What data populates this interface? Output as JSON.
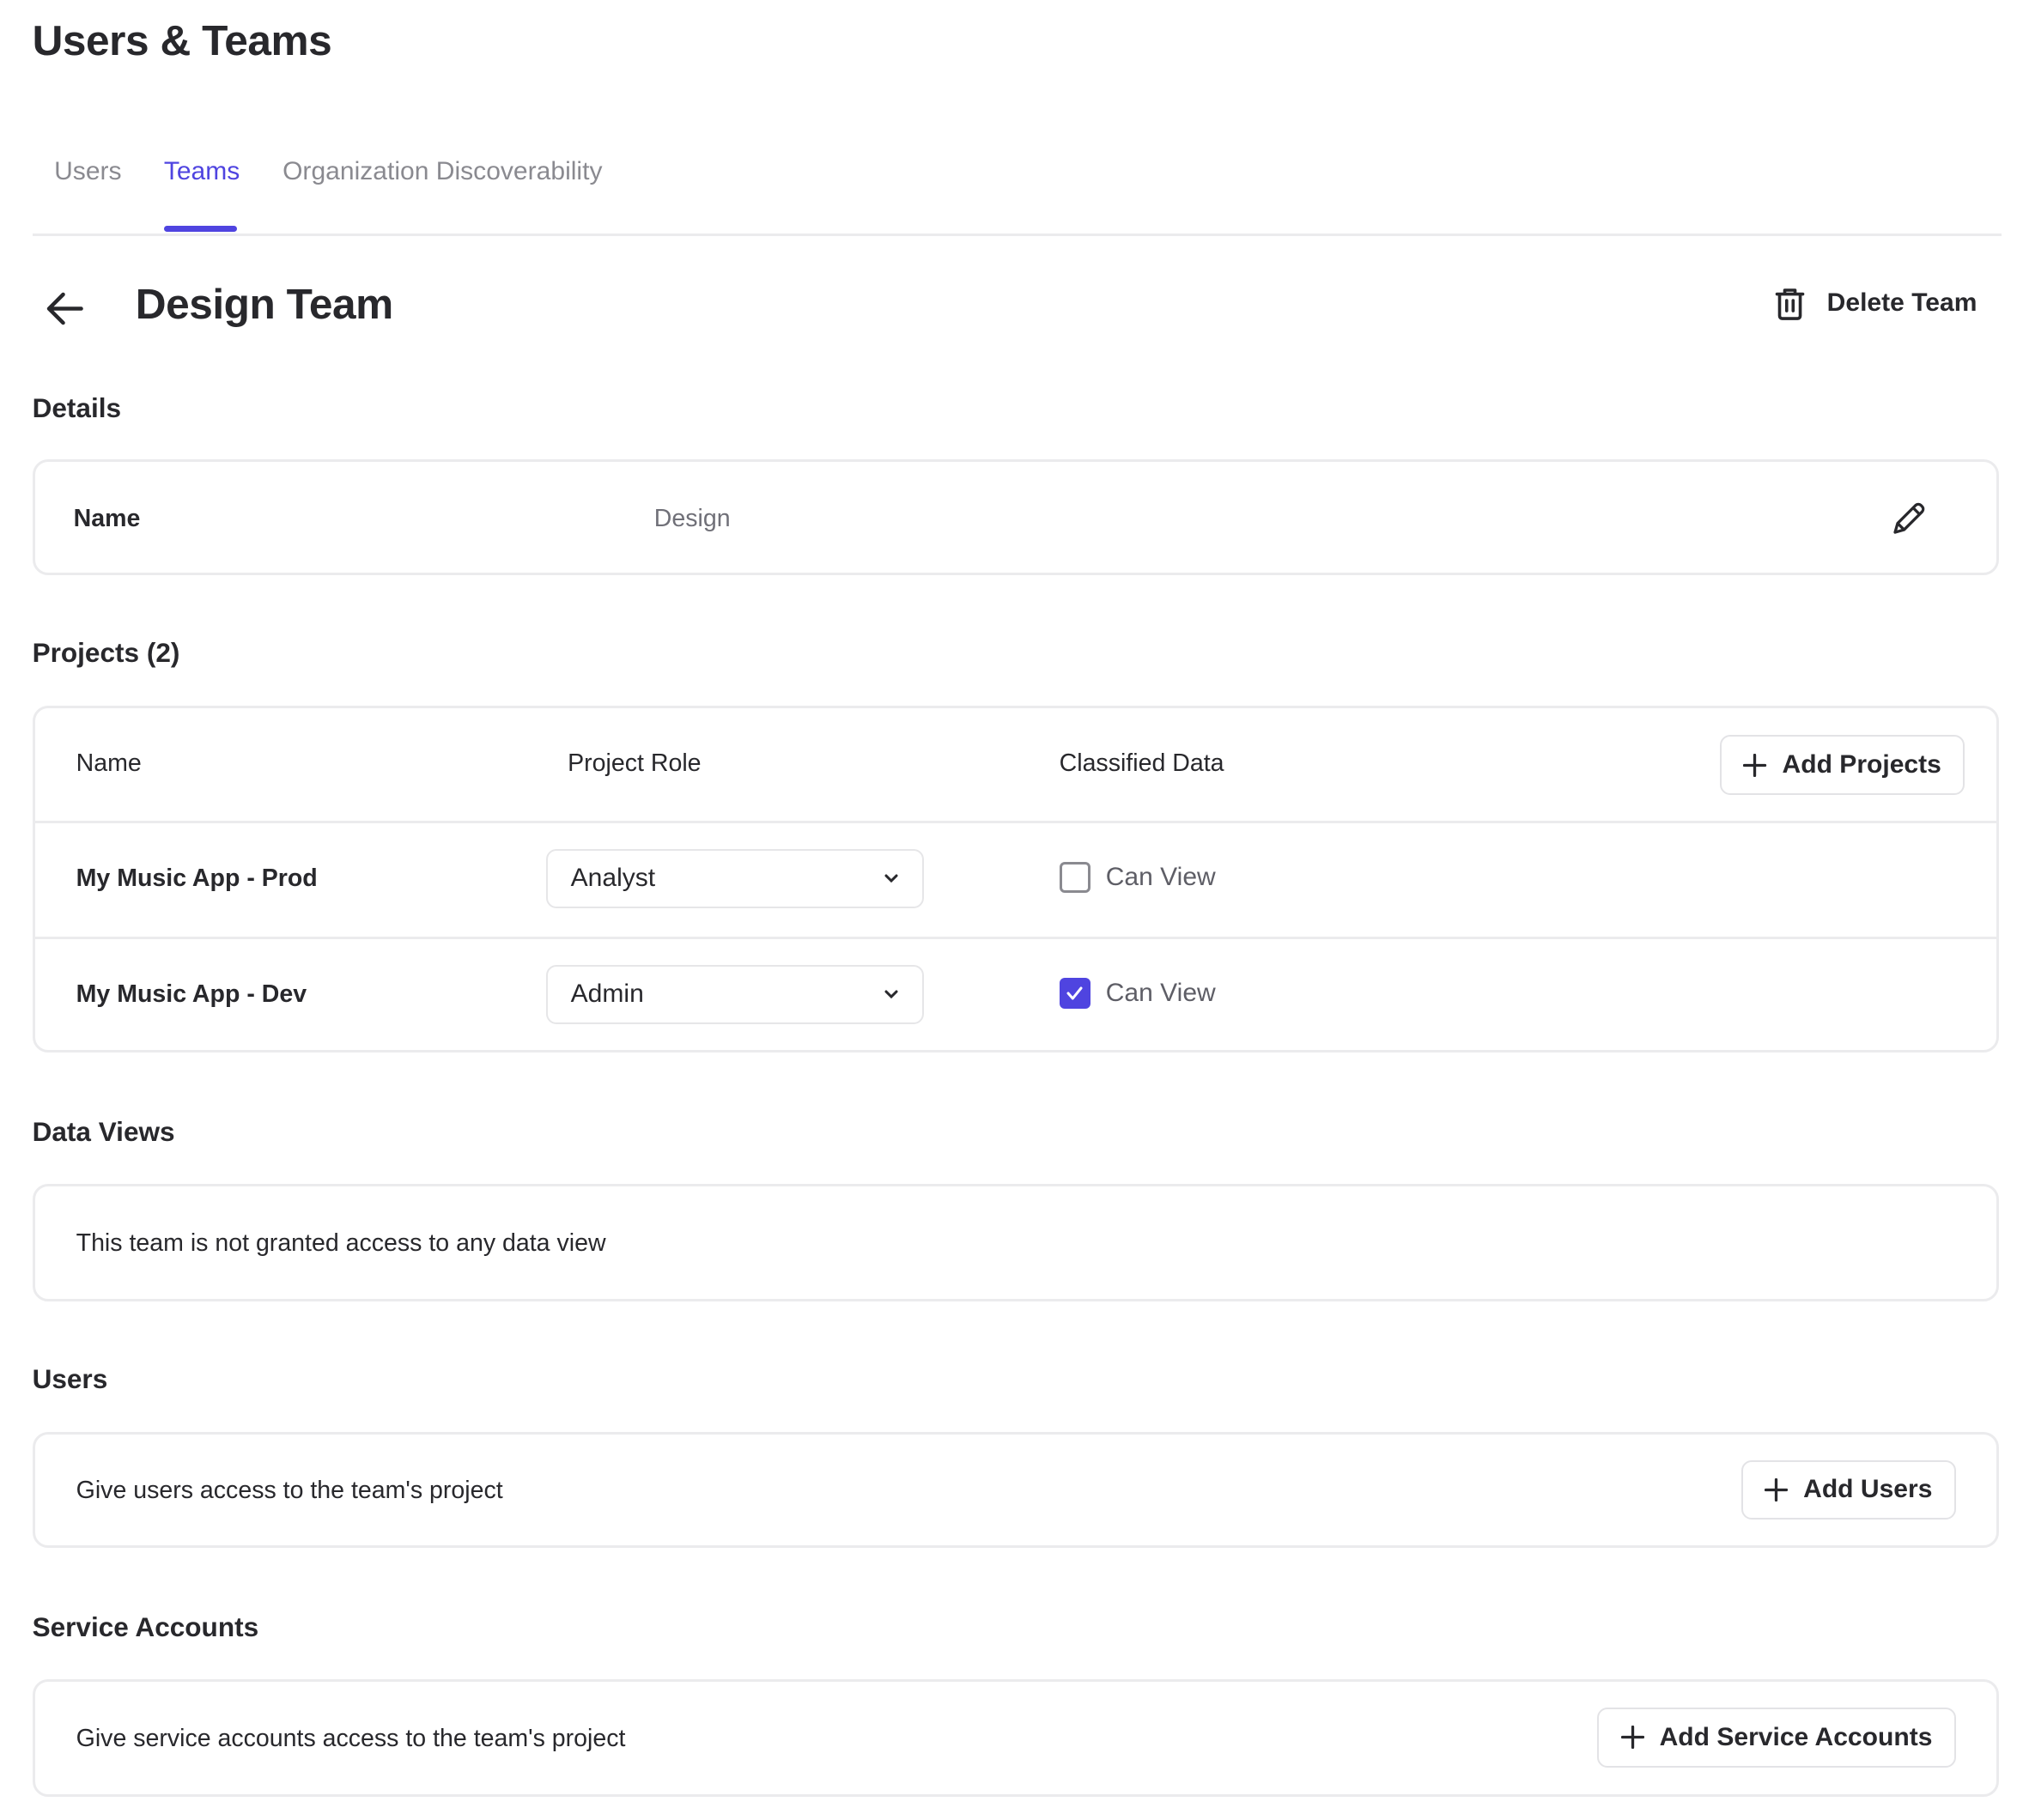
{
  "header": {
    "title": "Users & Teams"
  },
  "tabs": [
    {
      "label": "Users",
      "active": false
    },
    {
      "label": "Teams",
      "active": true
    },
    {
      "label": "Organization Discoverability",
      "active": false
    }
  ],
  "accent": "#4f44e0",
  "team": {
    "title": "Design Team",
    "delete_label": "Delete Team",
    "back_icon": "arrow-left-icon",
    "delete_icon": "trash-icon"
  },
  "details": {
    "heading": "Details",
    "name_label": "Name",
    "name_value": "Design",
    "edit_icon": "pencil-icon"
  },
  "projects": {
    "heading": "Projects (2)",
    "columns": [
      "Name",
      "Project Role",
      "Classified Data"
    ],
    "add_label": "Add Projects",
    "rows": [
      {
        "name": "My Music App - Prod",
        "role": "Analyst",
        "classified_label": "Can View",
        "checked": false
      },
      {
        "name": "My Music App - Dev",
        "role": "Admin",
        "classified_label": "Can View",
        "checked": true
      }
    ]
  },
  "data_views": {
    "heading": "Data Views",
    "empty": "This team is not granted access to any data view"
  },
  "users": {
    "heading": "Users",
    "text": "Give users access to the team's project",
    "add_label": "Add Users"
  },
  "service_accounts": {
    "heading": "Service Accounts",
    "text": "Give service accounts access to the team's project",
    "add_label": "Add Service Accounts"
  }
}
